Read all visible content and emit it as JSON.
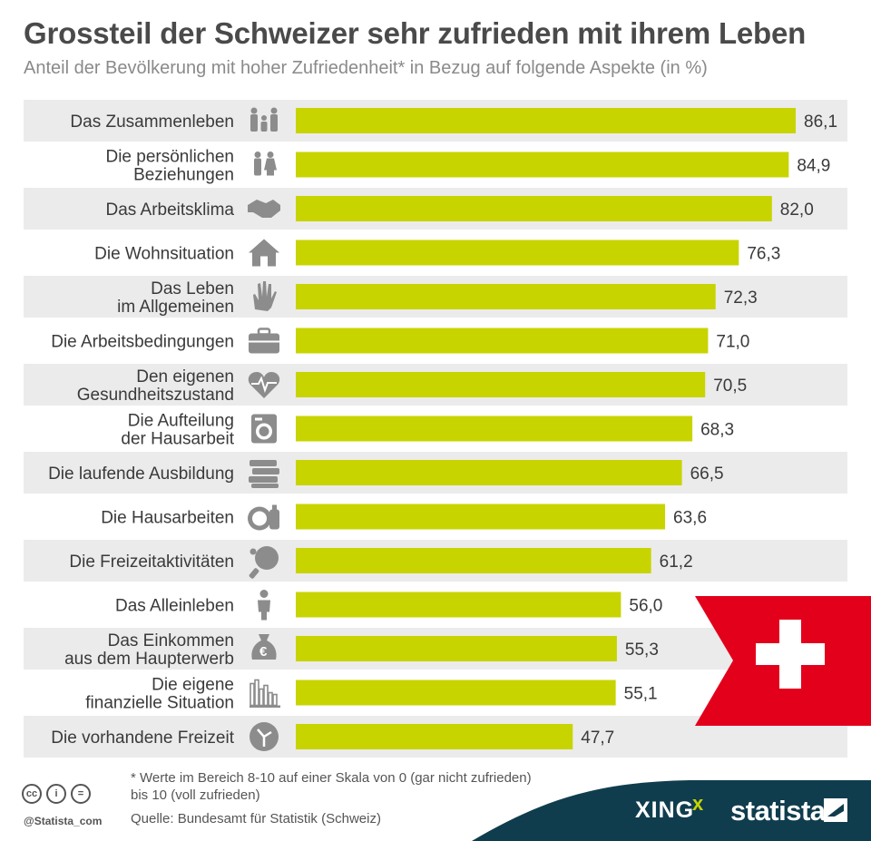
{
  "title": "Grossteil der Schweizer sehr zufrieden mit ihrem Leben",
  "subtitle": "Anteil der Bevölkerung mit hoher Zufriedenheit* in Bezug auf folgende Aspekte (in %)",
  "footnote": "* Werte im Bereich 8-10 auf einer Skala von 0 (gar nicht zufrieden) bis 10 (voll zufrieden)",
  "source": "Quelle: Bundesamt für Statistik (Schweiz)",
  "handle": "@Statista_com",
  "brands": {
    "xing": "XING",
    "xing_mark": "x",
    "statista": "statista"
  },
  "colors": {
    "bar": "#c8d400",
    "row_band": "#ebebeb",
    "icon": "#8c8c8c",
    "flag_red": "#e3001b",
    "footer_band": "#0f3d4e"
  },
  "chart_data": {
    "type": "bar",
    "orientation": "horizontal",
    "unit": "%",
    "xlim": [
      0,
      100
    ],
    "categories": [
      "Das Zusammenleben",
      "Die persönlichen\nBeziehungen",
      "Das Arbeitsklima",
      "Die Wohnsituation",
      "Das Leben\nim Allgemeinen",
      "Die Arbeitsbedingungen",
      "Den eigenen\nGesundheitszustand",
      "Die Aufteilung\nder Hausarbeit",
      "Die laufende Ausbildung",
      "Die Hausarbeiten",
      "Die Freizeitaktivitäten",
      "Das Alleinleben",
      "Das Einkommen\naus dem Haupterwerb",
      "Die eigene\nfinanzielle Situation",
      "Die vorhandene Freizeit"
    ],
    "values": [
      86.1,
      84.9,
      82.0,
      76.3,
      72.3,
      71.0,
      70.5,
      68.3,
      66.5,
      63.6,
      61.2,
      56.0,
      55.3,
      55.1,
      47.7
    ],
    "value_labels": [
      "86,1",
      "84,9",
      "82,0",
      "76,3",
      "72,3",
      "71,0",
      "70,5",
      "68,3",
      "66,5",
      "63,6",
      "61,2",
      "56,0",
      "55,3",
      "55,1",
      "47,7"
    ],
    "icons": [
      "family-icon",
      "couple-icon",
      "handshake-icon",
      "house-icon",
      "hand-icon",
      "briefcase-icon",
      "heart-pulse-icon",
      "washing-machine-icon",
      "books-icon",
      "dishes-icon",
      "ping-pong-icon",
      "person-icon",
      "money-bag-icon",
      "bar-chart-icon",
      "clock-icon"
    ],
    "alternating_row_bands": true
  }
}
